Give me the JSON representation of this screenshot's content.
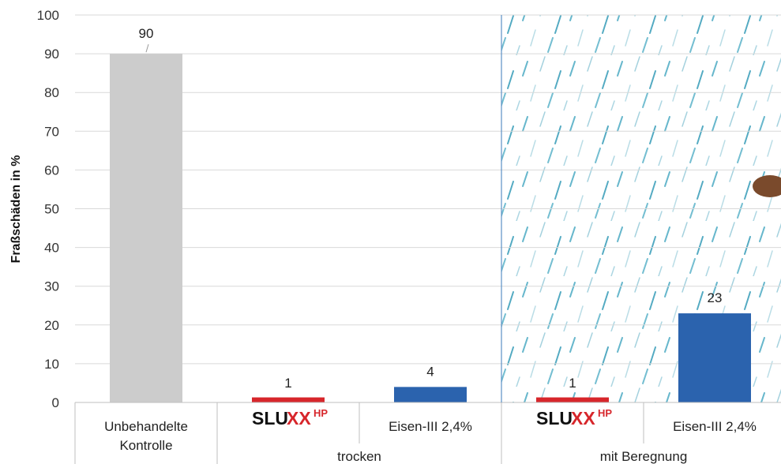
{
  "chart_data": {
    "type": "bar",
    "ylabel": "Fraßschäden in %",
    "ylim": [
      0,
      100
    ],
    "yticks": [
      "0",
      "10",
      "20",
      "30",
      "40",
      "50",
      "60",
      "70",
      "80",
      "90",
      "100"
    ],
    "grid": true,
    "categories": [
      {
        "label": "Unbehandelte Kontrolle",
        "label_lines": [
          "Unbehandelte",
          "Kontrolle"
        ],
        "logo": false,
        "value": 90,
        "value_label": "90",
        "color": "#cccccc"
      },
      {
        "label": "SLUXX HP",
        "logo": true,
        "value": 1,
        "value_label": "1",
        "color": "#d7262b"
      },
      {
        "label": "Eisen-III 2,4%",
        "label_lines": [
          "Eisen-III 2,4%"
        ],
        "logo": false,
        "value": 4,
        "value_label": "4",
        "color": "#2b63ae"
      },
      {
        "label": "SLUXX HP",
        "logo": true,
        "value": 1,
        "value_label": "1",
        "color": "#d7262b"
      },
      {
        "label": "Eisen-III 2,4%",
        "label_lines": [
          "Eisen-III 2,4%"
        ],
        "logo": false,
        "value": 23,
        "value_label": "23",
        "color": "#2b63ae"
      }
    ],
    "groups": [
      {
        "label": "trocken"
      },
      {
        "label": "mit Beregnung"
      }
    ],
    "logo": {
      "text_sl": "SLU",
      "text_x": "XX",
      "text_hp": "HP"
    },
    "background": {
      "region": "mit Beregnung",
      "motif": "rain-icon"
    }
  }
}
